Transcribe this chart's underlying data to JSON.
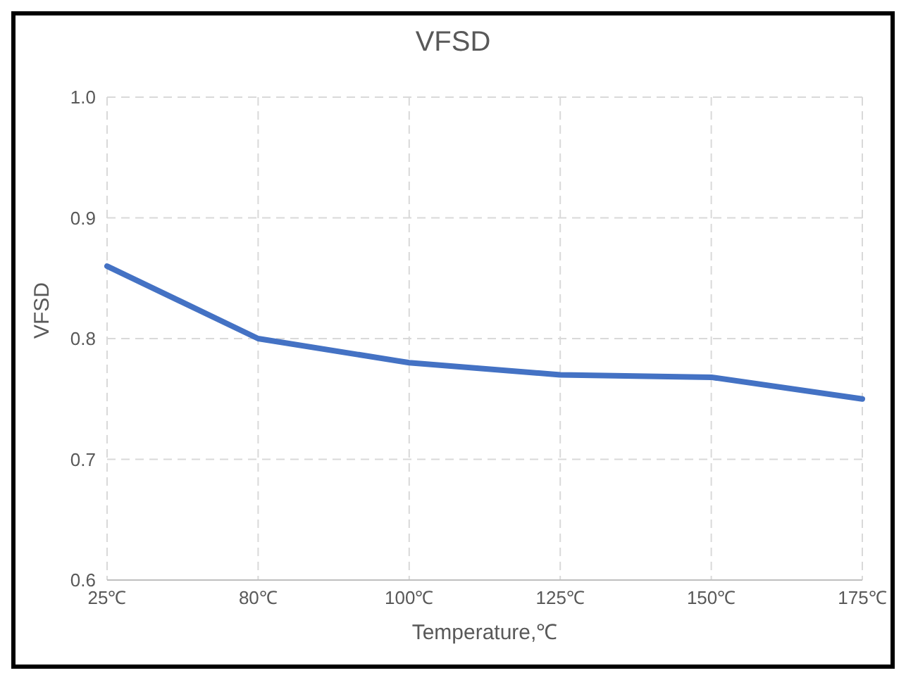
{
  "chart_data": {
    "type": "line",
    "title": "VFSD",
    "xlabel": "Temperature,℃",
    "ylabel": "VFSD",
    "categories": [
      "25℃",
      "80℃",
      "100℃",
      "125℃",
      "150℃",
      "175℃"
    ],
    "series": [
      {
        "color": "#4472c4",
        "values": [
          0.86,
          0.8,
          0.78,
          0.77,
          0.768,
          0.75
        ]
      }
    ],
    "ylim": [
      0.6,
      1.0
    ],
    "yticks": [
      {
        "value": 0.6,
        "label": "0.6"
      },
      {
        "value": 0.7,
        "label": "0.7"
      },
      {
        "value": 0.8,
        "label": "0.8"
      },
      {
        "value": 0.9,
        "label": "0.9"
      },
      {
        "value": 1.0,
        "label": "1.0"
      }
    ],
    "grid": true,
    "legend": false,
    "marker": "none",
    "line_style": "solid"
  }
}
